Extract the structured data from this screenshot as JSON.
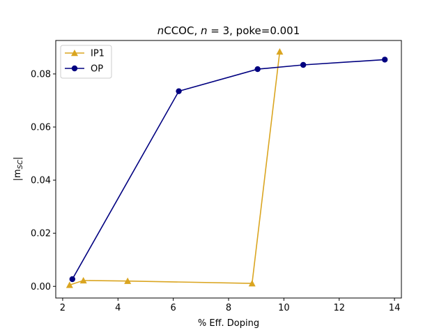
{
  "chart_data": {
    "type": "line",
    "title": "nCCOC, n = 3, poke=0.001",
    "title_parts": {
      "n1": "n",
      "mid": "CCOC, ",
      "n2": "n",
      "rest": " = 3, poke=0.001"
    },
    "xlabel": "% Eff. Doping",
    "ylabel": "|m",
    "ylabel_sub": "SC",
    "ylabel_close": "|",
    "xlim": [
      1.75,
      14.25
    ],
    "ylim": [
      -0.0044,
      0.0926
    ],
    "xticks": [
      2,
      4,
      6,
      8,
      10,
      12,
      14
    ],
    "yticks": [
      0.0,
      0.02,
      0.04,
      0.06,
      0.08
    ],
    "xtick_labels": [
      "2",
      "4",
      "6",
      "8",
      "10",
      "12",
      "14"
    ],
    "ytick_labels": [
      "0.00",
      "0.02",
      "0.04",
      "0.06",
      "0.08"
    ],
    "grid": false,
    "legend_position": "top-left",
    "series": [
      {
        "name": "IP1",
        "color": "#DAA520",
        "marker": "triangle-up",
        "x": [
          2.25,
          2.75,
          4.35,
          8.85,
          9.85
        ],
        "y": [
          0.0005,
          0.0022,
          0.002,
          0.0011,
          0.0884
        ]
      },
      {
        "name": "OP",
        "color": "#000080",
        "marker": "circle",
        "x": [
          2.35,
          6.2,
          9.05,
          10.7,
          13.65
        ],
        "y": [
          0.0027,
          0.0735,
          0.0818,
          0.0834,
          0.0854
        ]
      }
    ]
  }
}
